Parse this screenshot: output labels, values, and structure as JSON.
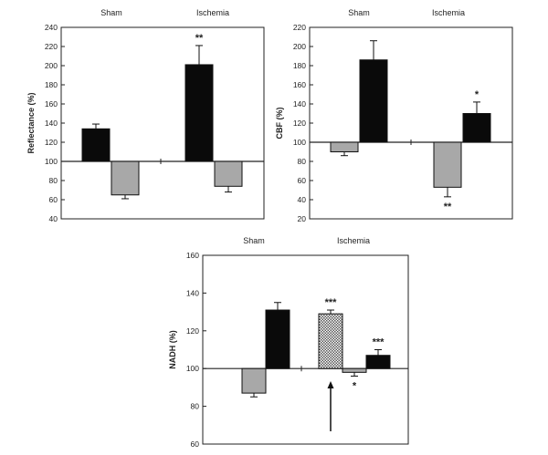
{
  "chart_data": [
    {
      "type": "bar",
      "ylabel": "Reflectance (%)",
      "ylim": [
        40,
        240
      ],
      "yticks": [
        40,
        60,
        80,
        100,
        120,
        140,
        160,
        180,
        200,
        220,
        240
      ],
      "baseline": 100,
      "groups": [
        "Sham",
        "Ischemia"
      ],
      "bars": [
        {
          "group": "Sham",
          "style": "black",
          "value": 134,
          "error": 5,
          "annotation": ""
        },
        {
          "group": "Sham",
          "style": "gray",
          "value": 65,
          "error": 4,
          "annotation": ""
        },
        {
          "group": "Ischemia",
          "style": "black",
          "value": 201,
          "error": 20,
          "annotation": "**"
        },
        {
          "group": "Ischemia",
          "style": "gray",
          "value": 74,
          "error": 6,
          "annotation": ""
        }
      ]
    },
    {
      "type": "bar",
      "ylabel": "CBF (%)",
      "ylim": [
        20,
        220
      ],
      "yticks": [
        20,
        40,
        60,
        80,
        100,
        120,
        140,
        160,
        180,
        200,
        220
      ],
      "baseline": 100,
      "groups": [
        "Sham",
        "Ischemia"
      ],
      "bars": [
        {
          "group": "Sham",
          "style": "gray",
          "value": 90,
          "error": 4,
          "annotation": ""
        },
        {
          "group": "Sham",
          "style": "black",
          "value": 186,
          "error": 20,
          "annotation": ""
        },
        {
          "group": "Ischemia",
          "style": "gray",
          "value": 53,
          "error": 10,
          "annotation": "**"
        },
        {
          "group": "Ischemia",
          "style": "black",
          "value": 130,
          "error": 12,
          "annotation": "*"
        }
      ]
    },
    {
      "type": "bar",
      "ylabel": "NADH (%)",
      "ylim": [
        60,
        160
      ],
      "yticks": [
        60,
        80,
        100,
        120,
        140,
        160
      ],
      "baseline": 100,
      "groups": [
        "Sham",
        "Ischemia"
      ],
      "bars": [
        {
          "group": "Sham",
          "style": "gray",
          "value": 87,
          "error": 2,
          "annotation": ""
        },
        {
          "group": "Sham",
          "style": "black",
          "value": 131,
          "error": 4,
          "annotation": ""
        },
        {
          "group": "Ischemia",
          "style": "hatched",
          "value": 129,
          "error": 2,
          "annotation": "***"
        },
        {
          "group": "Ischemia",
          "style": "gray",
          "value": 98,
          "error": 2,
          "annotation": "*"
        },
        {
          "group": "Ischemia",
          "style": "black",
          "value": 107,
          "error": 3,
          "annotation": "***"
        }
      ]
    }
  ],
  "colors": {
    "black_bar": "#0a0a0a",
    "gray_bar": "#a8a8a8",
    "axis": "#222222"
  }
}
